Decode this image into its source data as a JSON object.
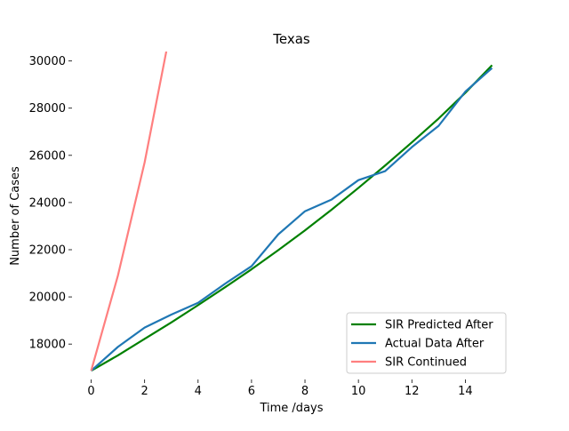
{
  "chart_data": {
    "type": "line",
    "title": "Texas",
    "xlabel": "Time /days",
    "ylabel": "Number of Cases",
    "xlim": [
      -0.75,
      15.75
    ],
    "ylim": [
      16500,
      30400
    ],
    "xticks": [
      0,
      2,
      4,
      6,
      8,
      10,
      12,
      14
    ],
    "yticks": [
      18000,
      20000,
      22000,
      24000,
      26000,
      28000,
      30000
    ],
    "grid": false,
    "legend_position": "lower-right",
    "series": [
      {
        "name": "SIR Predicted After",
        "color": "#008000",
        "x": [
          0,
          1,
          2,
          3,
          4,
          5,
          6,
          7,
          8,
          9,
          10,
          11,
          12,
          13,
          14,
          15
        ],
        "y": [
          16870,
          17520,
          18220,
          18920,
          19650,
          20400,
          21170,
          21980,
          22820,
          23700,
          24620,
          25570,
          26550,
          27560,
          28650,
          29820
        ]
      },
      {
        "name": "Actual Data After",
        "color": "#1f77b4",
        "x": [
          0,
          1,
          2,
          3,
          4,
          5,
          6,
          7,
          8,
          9,
          10,
          11,
          12,
          13,
          14,
          15
        ],
        "y": [
          16870,
          17880,
          18700,
          19250,
          19750,
          20550,
          21300,
          22650,
          23630,
          24130,
          24950,
          25330,
          26350,
          27250,
          28700,
          29700
        ]
      },
      {
        "name": "SIR Continued",
        "color": "#ff7f7f",
        "x": [
          0,
          1,
          2,
          3
        ],
        "y": [
          16870,
          20900,
          25700,
          31500
        ]
      }
    ]
  }
}
